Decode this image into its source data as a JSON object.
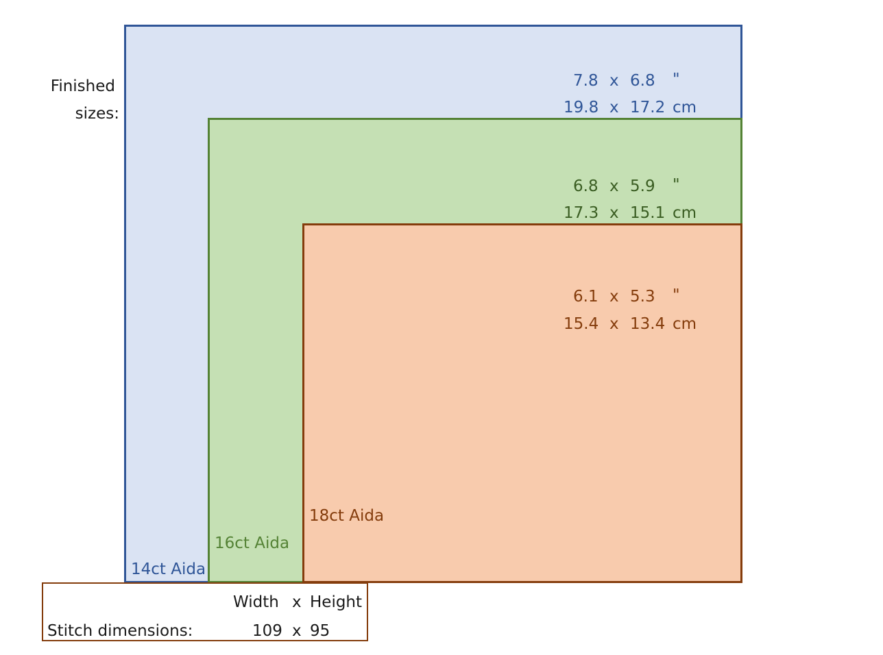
{
  "finished_label": {
    "line1": "Finished",
    "line2": "sizes:"
  },
  "colors": {
    "ct14_fill": "#dae3f3",
    "ct14_border": "#2f5597",
    "ct14_text": "#2f5597",
    "ct16_fill": "#c5e0b4",
    "ct16_border": "#548235",
    "ct16_text": "#3a5d22",
    "ct18_fill": "#f8cbad",
    "ct18_border": "#843c0c",
    "ct18_text": "#843c0c"
  },
  "fabrics": [
    {
      "label": "14ct Aida",
      "inches": {
        "w": "7.8",
        "x": "x",
        "h": "6.8",
        "unit": "\""
      },
      "cm": {
        "w": "19.8",
        "x": "x",
        "h": "17.2",
        "unit": "cm"
      }
    },
    {
      "label": "16ct Aida",
      "inches": {
        "w": "6.8",
        "x": "x",
        "h": "5.9",
        "unit": "\""
      },
      "cm": {
        "w": "17.3",
        "x": "x",
        "h": "15.1",
        "unit": "cm"
      }
    },
    {
      "label": "18ct Aida",
      "inches": {
        "w": "6.1",
        "x": "x",
        "h": "5.3",
        "unit": "\""
      },
      "cm": {
        "w": "15.4",
        "x": "x",
        "h": "13.4",
        "unit": "cm"
      }
    }
  ],
  "stitch": {
    "header_w": "Width",
    "header_x": "x",
    "header_h": "Height",
    "label": "Stitch dimensions:",
    "width": "109",
    "x": "x",
    "height": "95"
  }
}
